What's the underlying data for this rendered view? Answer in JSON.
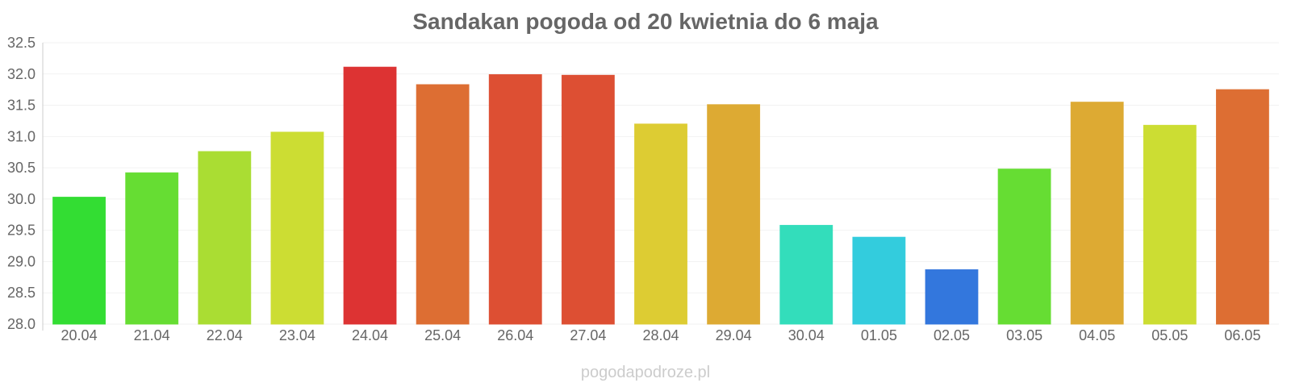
{
  "chart_data": {
    "type": "bar",
    "title": "Sandakan pogoda od 20 kwietnia do 6 maja",
    "xlabel": "",
    "ylabel": "",
    "ylim": [
      28.0,
      32.5
    ],
    "yticks": [
      "28.0",
      "28.5",
      "29.0",
      "29.5",
      "30.0",
      "30.5",
      "31.0",
      "31.5",
      "32.0",
      "32.5"
    ],
    "categories": [
      "20.04",
      "21.04",
      "22.04",
      "23.04",
      "24.04",
      "25.04",
      "26.04",
      "27.04",
      "28.04",
      "29.04",
      "30.04",
      "01.05",
      "02.05",
      "03.05",
      "04.05",
      "05.05",
      "06.05"
    ],
    "values": [
      30.03,
      30.42,
      30.76,
      31.07,
      32.11,
      31.83,
      31.99,
      31.98,
      31.2,
      31.51,
      29.58,
      29.39,
      28.87,
      30.48,
      31.55,
      31.18,
      31.75
    ],
    "colors": [
      "#33dd33",
      "#66dd33",
      "#aadd33",
      "#ccdd33",
      "#dd3333",
      "#dd6e33",
      "#dd4f33",
      "#dd4f33",
      "#ddcc33",
      "#ddaa33",
      "#33ddbb",
      "#33ccdd",
      "#3377dd",
      "#66dd33",
      "#ddaa33",
      "#ccdd33",
      "#dd6e33"
    ],
    "grid": true,
    "legend": "none"
  },
  "watermark": "pogodapodroze.pl"
}
